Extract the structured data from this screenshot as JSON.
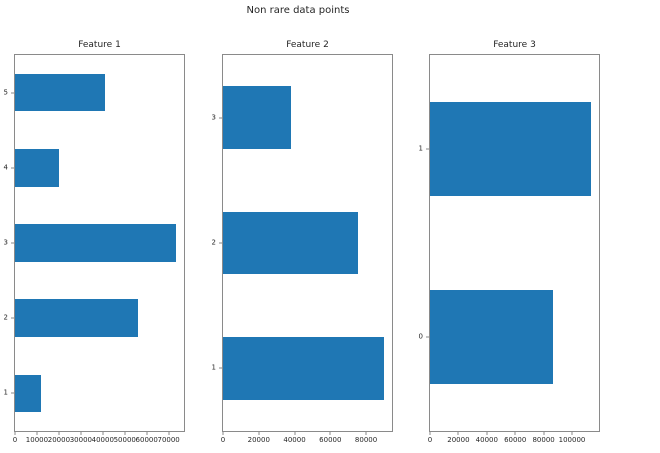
{
  "figure": {
    "suptitle": "Non rare data points",
    "bar_color": "#1f77b4",
    "background_color": "#ffffff",
    "spine_color": "#8a8a8a",
    "text_color": "#262626"
  },
  "chart_data": [
    {
      "type": "bar",
      "orientation": "horizontal",
      "title": "Feature 1",
      "categories": [
        "1",
        "2",
        "3",
        "4",
        "5"
      ],
      "values": [
        12000,
        56000,
        73500,
        20000,
        41000
      ],
      "xlim": [
        0,
        77000
      ],
      "ylim": [
        0.5,
        5.5
      ],
      "bar_height": 0.5,
      "xticks": [
        0,
        10000,
        20000,
        30000,
        40000,
        50000,
        60000,
        70000
      ],
      "xtick_labels": [
        "0",
        "10000",
        "20000",
        "30000",
        "40000",
        "50000",
        "60000",
        "70000"
      ],
      "grid": false,
      "legend": "none"
    },
    {
      "type": "bar",
      "orientation": "horizontal",
      "title": "Feature 2",
      "categories": [
        "1",
        "2",
        "3"
      ],
      "values": [
        90000,
        75500,
        38000
      ],
      "xlim": [
        0,
        94500
      ],
      "ylim": [
        0.5,
        3.5
      ],
      "bar_height": 0.5,
      "xticks": [
        0,
        20000,
        40000,
        60000,
        80000
      ],
      "xtick_labels": [
        "0",
        "20000",
        "40000",
        "60000",
        "80000"
      ],
      "grid": false,
      "legend": "none"
    },
    {
      "type": "bar",
      "orientation": "horizontal",
      "title": "Feature 3",
      "categories": [
        "0",
        "1"
      ],
      "values": [
        86500,
        113500
      ],
      "xlim": [
        0,
        119000
      ],
      "ylim": [
        -0.5,
        1.5
      ],
      "bar_height": 0.5,
      "xticks": [
        0,
        20000,
        40000,
        60000,
        80000,
        100000
      ],
      "xtick_labels": [
        "0",
        "20000",
        "40000",
        "60000",
        "80000",
        "100000"
      ],
      "grid": false,
      "legend": "none"
    }
  ]
}
